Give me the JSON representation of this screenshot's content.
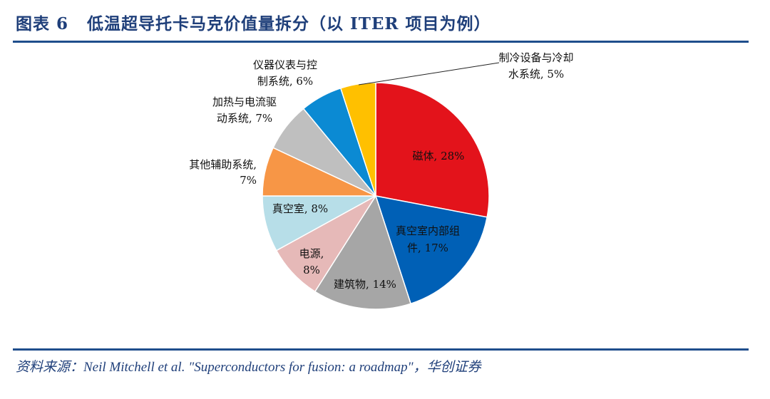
{
  "title": {
    "figure_no": "图表 6",
    "text": "低温超导托卡马克价值量拆分（以 ITER 项目为例）"
  },
  "source": "资料来源：Neil Mitchell et al. \"Superconductors for fusion: a roadmap\"，华创证券",
  "chart_data": {
    "type": "pie",
    "title": "低温超导托卡马克价值量拆分（以 ITER 项目为例）",
    "start_angle": "12 o'clock, clockwise",
    "slices": [
      {
        "name": "磁体",
        "value": 28,
        "color": "#E3131B",
        "label_lines": [
          "磁体, 28%"
        ]
      },
      {
        "name": "真空室内部组件",
        "value": 17,
        "color": "#0060B6",
        "label_lines": [
          "真空室内部组",
          "件, 17%"
        ]
      },
      {
        "name": "建筑物",
        "value": 14,
        "color": "#A6A6A6",
        "label_lines": [
          "建筑物, 14%"
        ]
      },
      {
        "name": "电源",
        "value": 8,
        "color": "#E6B9B8",
        "label_lines": [
          "电源,",
          "8%"
        ]
      },
      {
        "name": "真空室",
        "value": 8,
        "color": "#B7DEE8",
        "label_lines": [
          "真空室, 8%"
        ]
      },
      {
        "name": "其他辅助系统",
        "value": 7,
        "color": "#F79646",
        "label_lines": [
          "其他辅助系统,",
          "7%"
        ]
      },
      {
        "name": "加热与电流驱动系统",
        "value": 7,
        "color": "#BFBFBF",
        "label_lines": [
          "加热与电流驱",
          "动系统, 7%"
        ]
      },
      {
        "name": "仪器仪表与控制系统",
        "value": 6,
        "color": "#0B8AD3",
        "label_lines": [
          "仪器仪表与控",
          "制系统, 6%"
        ]
      },
      {
        "name": "制冷设备与冷却水系统",
        "value": 5,
        "color": "#FFC000",
        "label_lines": [
          "制冷设备与冷却",
          "水系统, 5%"
        ]
      }
    ]
  }
}
